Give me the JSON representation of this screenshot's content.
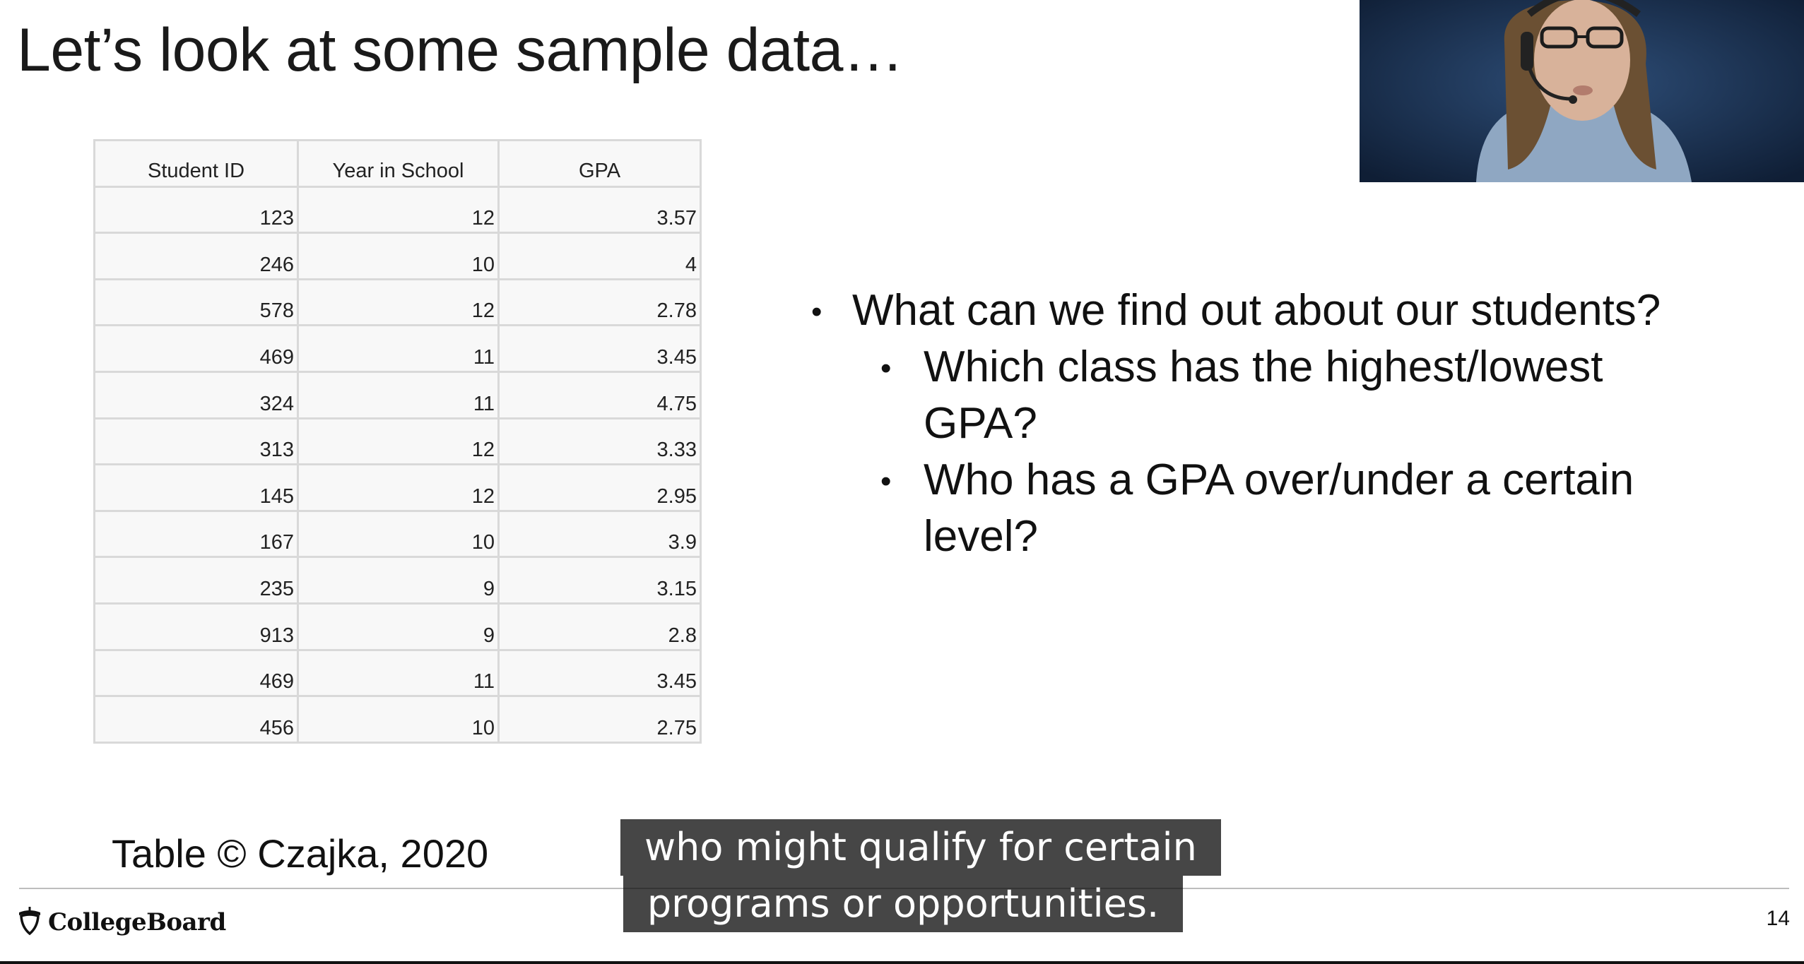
{
  "slide": {
    "title": "Let’s look at some sample data…",
    "page_number": "14"
  },
  "table": {
    "headers": [
      "Student ID",
      "Year in School",
      "GPA"
    ],
    "rows": [
      [
        "123",
        "12",
        "3.57"
      ],
      [
        "246",
        "10",
        "4"
      ],
      [
        "578",
        "12",
        "2.78"
      ],
      [
        "469",
        "11",
        "3.45"
      ],
      [
        "324",
        "11",
        "4.75"
      ],
      [
        "313",
        "12",
        "3.33"
      ],
      [
        "145",
        "12",
        "2.95"
      ],
      [
        "167",
        "10",
        "3.9"
      ],
      [
        "235",
        "9",
        "3.15"
      ],
      [
        "913",
        "9",
        "2.8"
      ],
      [
        "469",
        "11",
        "3.45"
      ],
      [
        "456",
        "10",
        "2.75"
      ]
    ],
    "caption": "Table © Czajka, 2020"
  },
  "bullets": {
    "main": "What can we find out about our students?",
    "sub1_line1": "Which class has the highest/lowest",
    "sub1_line2": "GPA?",
    "sub2_line1": "Who has a GPA over/under a certain",
    "sub2_line2": "level?",
    "bullet_glyph": "•"
  },
  "footer": {
    "logo_text": "CollegeBoard",
    "logo_icon": "acorn-icon"
  },
  "subtitles": {
    "line1": "who might qualify for certain",
    "line2": "programs or opportunities."
  },
  "video": {
    "icon": "webcam-presenter-feed"
  },
  "colors": {
    "subtitle_background": "#080808",
    "table_border": "#d9d9d9",
    "video_background": "#1b3050"
  }
}
